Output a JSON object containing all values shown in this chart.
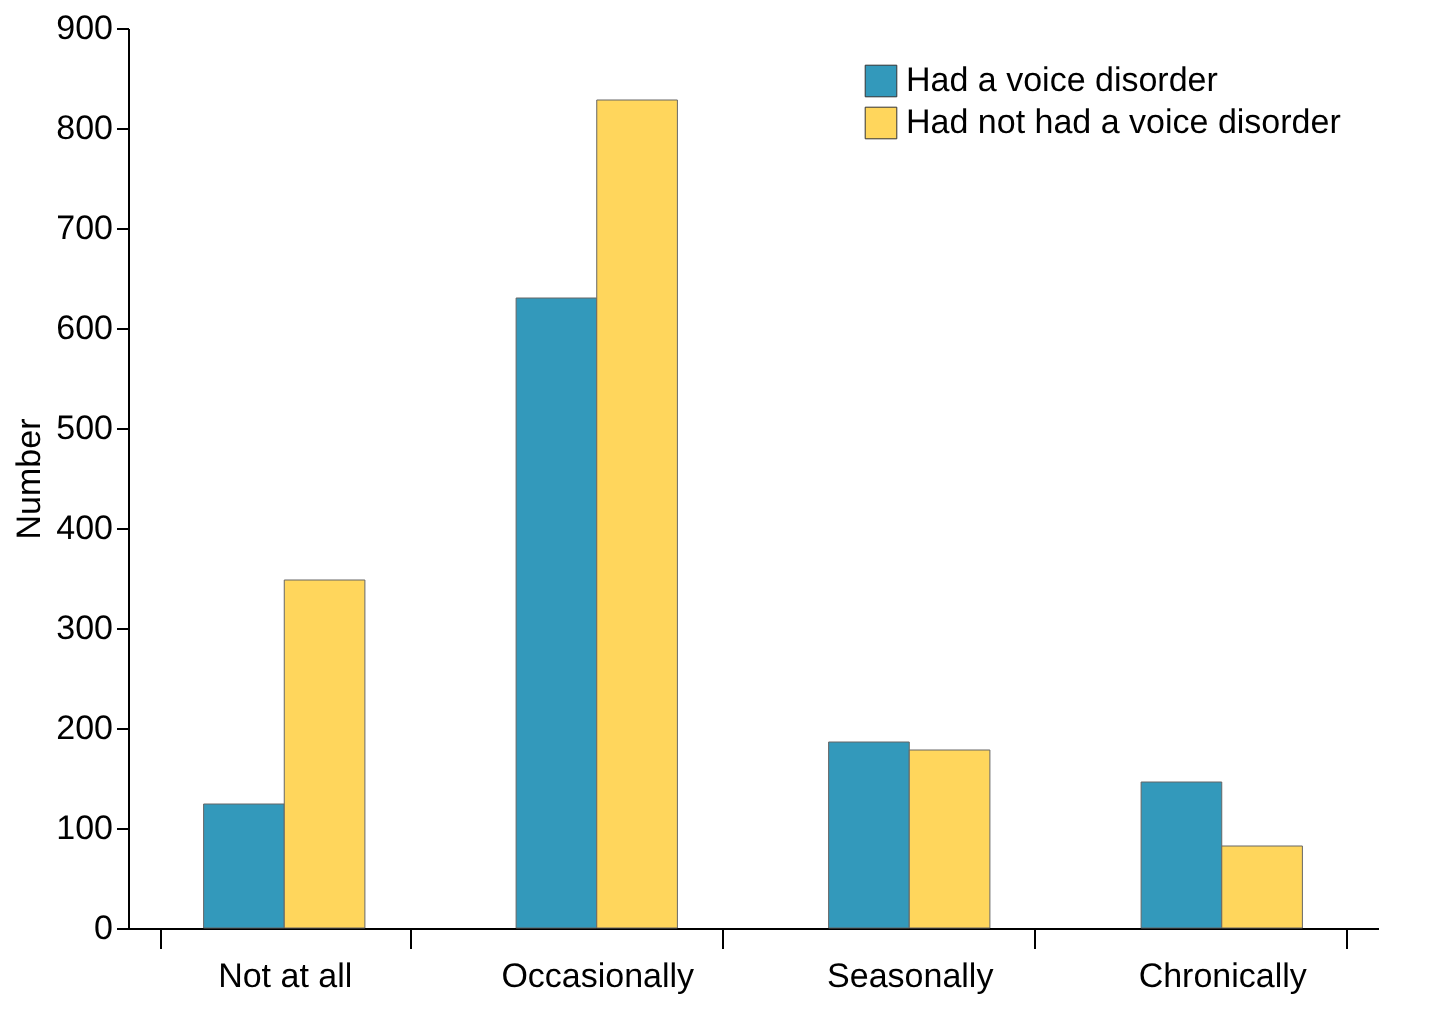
{
  "chart_data": {
    "type": "bar",
    "ylabel": "Number",
    "categories": [
      "Not at all",
      "Occasionally",
      "Seasonally",
      "Chronically"
    ],
    "series": [
      {
        "name": "Had a voice disorder",
        "color": "#3399bb",
        "values": [
          124,
          630,
          186,
          146
        ]
      },
      {
        "name": "Had not had a voice disorder",
        "color": "#ffd65c",
        "values": [
          348,
          828,
          178,
          82
        ]
      }
    ],
    "ylim": [
      0,
      900
    ],
    "yticks": [
      0,
      100,
      200,
      300,
      400,
      500,
      600,
      700,
      800,
      900
    ],
    "grid": false,
    "legend": "top right"
  }
}
